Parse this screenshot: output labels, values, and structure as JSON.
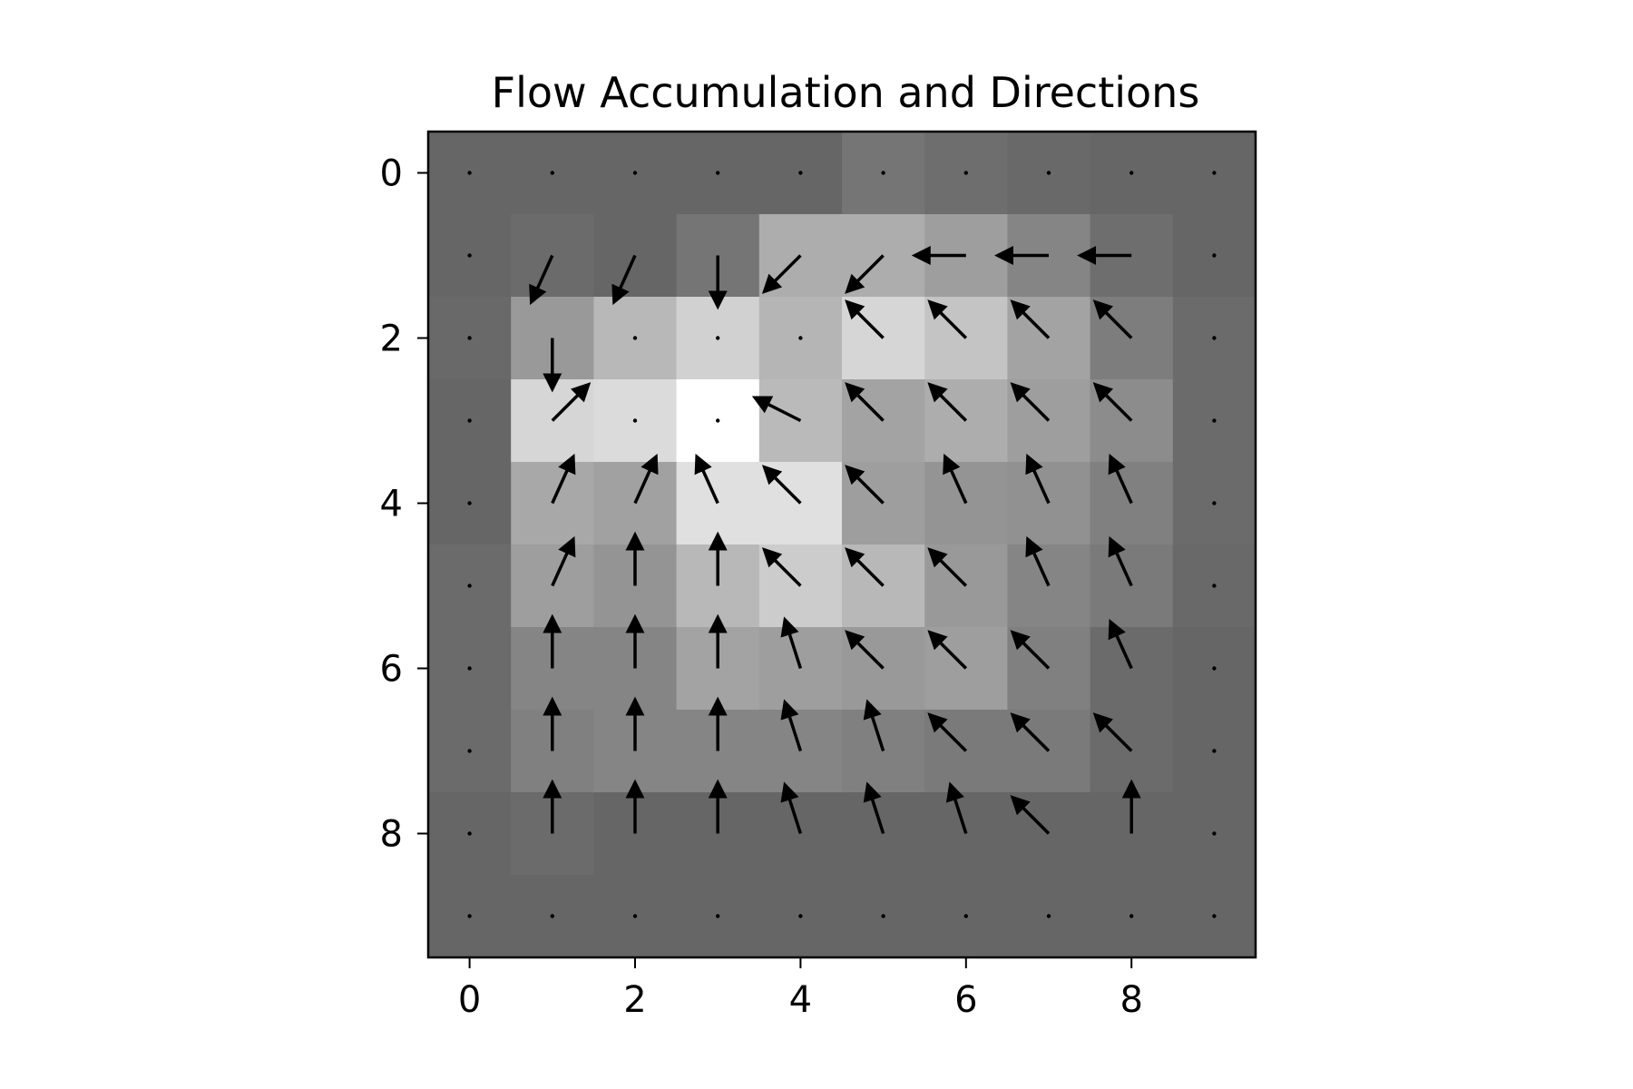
{
  "chart_data": {
    "type": "heatmap",
    "title": "Flow Accumulation and Directions",
    "xlabel": "",
    "ylabel": "",
    "xlim": [
      -0.5,
      9.5
    ],
    "ylim": [
      9.5,
      -0.5
    ],
    "x_ticks": [
      0,
      2,
      4,
      6,
      8
    ],
    "y_ticks": [
      0,
      2,
      4,
      6,
      8
    ],
    "x_tick_labels": [
      "0",
      "2",
      "4",
      "6",
      "8"
    ],
    "y_tick_labels": [
      "0",
      "2",
      "4",
      "6",
      "8"
    ],
    "colormap": "gray",
    "grid": false,
    "legend": "none",
    "grid_size": [
      10,
      10
    ],
    "cell_values": [
      [
        0.4,
        0.4,
        0.4,
        0.4,
        0.4,
        0.46,
        0.43,
        0.41,
        0.4,
        0.4
      ],
      [
        0.4,
        0.42,
        0.4,
        0.46,
        0.68,
        0.68,
        0.62,
        0.52,
        0.43,
        0.4
      ],
      [
        0.41,
        0.6,
        0.72,
        0.82,
        0.71,
        0.84,
        0.77,
        0.64,
        0.49,
        0.42
      ],
      [
        0.4,
        0.84,
        0.86,
        1.0,
        0.73,
        0.64,
        0.68,
        0.62,
        0.55,
        0.42
      ],
      [
        0.4,
        0.66,
        0.63,
        0.88,
        0.88,
        0.62,
        0.58,
        0.57,
        0.5,
        0.42
      ],
      [
        0.42,
        0.62,
        0.58,
        0.72,
        0.8,
        0.72,
        0.6,
        0.52,
        0.48,
        0.41
      ],
      [
        0.42,
        0.52,
        0.52,
        0.64,
        0.62,
        0.6,
        0.62,
        0.5,
        0.42,
        0.4
      ],
      [
        0.42,
        0.5,
        0.52,
        0.52,
        0.52,
        0.5,
        0.48,
        0.48,
        0.42,
        0.4
      ],
      [
        0.4,
        0.42,
        0.4,
        0.4,
        0.4,
        0.4,
        0.4,
        0.4,
        0.4,
        0.4
      ],
      [
        0.4,
        0.4,
        0.4,
        0.4,
        0.4,
        0.4,
        0.4,
        0.4,
        0.4,
        0.4
      ]
    ],
    "flow_directions": [
      [
        [
          0,
          0
        ],
        [
          0,
          0
        ],
        [
          0,
          0
        ],
        [
          0,
          0
        ],
        [
          0,
          0
        ],
        [
          0,
          0
        ],
        [
          0,
          0
        ],
        [
          0,
          0
        ],
        [
          0,
          0
        ],
        [
          0,
          0
        ]
      ],
      [
        [
          0,
          0
        ],
        [
          -0.45,
          -1
        ],
        [
          -0.45,
          -1
        ],
        [
          0,
          -1
        ],
        [
          -0.71,
          -0.71
        ],
        [
          -0.71,
          -0.71
        ],
        [
          -1,
          0
        ],
        [
          -1,
          0
        ],
        [
          -1,
          0
        ],
        [
          0,
          0
        ]
      ],
      [
        [
          0,
          0
        ],
        [
          0,
          -1
        ],
        [
          0,
          0
        ],
        [
          0,
          0
        ],
        [
          0,
          0
        ],
        [
          -0.71,
          0.71
        ],
        [
          -0.71,
          0.71
        ],
        [
          -0.71,
          0.71
        ],
        [
          -0.71,
          0.71
        ],
        [
          0,
          0
        ]
      ],
      [
        [
          0,
          0
        ],
        [
          0.71,
          0.71
        ],
        [
          0,
          0
        ],
        [
          0,
          0
        ],
        [
          -0.89,
          0.45
        ],
        [
          -0.71,
          0.71
        ],
        [
          -0.71,
          0.71
        ],
        [
          -0.71,
          0.71
        ],
        [
          -0.71,
          0.71
        ],
        [
          0,
          0
        ]
      ],
      [
        [
          0,
          0
        ],
        [
          0.45,
          1
        ],
        [
          0.45,
          1
        ],
        [
          -0.45,
          1
        ],
        [
          -0.71,
          0.71
        ],
        [
          -0.71,
          0.71
        ],
        [
          -0.45,
          1
        ],
        [
          -0.45,
          1
        ],
        [
          -0.45,
          1
        ],
        [
          0,
          0
        ]
      ],
      [
        [
          0,
          0
        ],
        [
          0.45,
          1
        ],
        [
          0,
          1
        ],
        [
          0,
          1
        ],
        [
          -0.71,
          0.71
        ],
        [
          -0.71,
          0.71
        ],
        [
          -0.71,
          0.71
        ],
        [
          -0.45,
          1
        ],
        [
          -0.45,
          1
        ],
        [
          0,
          0
        ]
      ],
      [
        [
          0,
          0
        ],
        [
          0,
          1
        ],
        [
          0,
          1
        ],
        [
          0,
          1
        ],
        [
          -0.32,
          1
        ],
        [
          -0.71,
          0.71
        ],
        [
          -0.71,
          0.71
        ],
        [
          -0.71,
          0.71
        ],
        [
          -0.45,
          1
        ],
        [
          0,
          0
        ]
      ],
      [
        [
          0,
          0
        ],
        [
          0,
          1
        ],
        [
          0,
          1
        ],
        [
          0,
          1
        ],
        [
          -0.32,
          1
        ],
        [
          -0.32,
          1
        ],
        [
          -0.71,
          0.71
        ],
        [
          -0.71,
          0.71
        ],
        [
          -0.71,
          0.71
        ],
        [
          0,
          0
        ]
      ],
      [
        [
          0,
          0
        ],
        [
          0,
          1
        ],
        [
          0,
          1
        ],
        [
          0,
          1
        ],
        [
          -0.32,
          1
        ],
        [
          -0.32,
          1
        ],
        [
          -0.32,
          1
        ],
        [
          -0.71,
          0.71
        ],
        [
          0,
          1
        ],
        [
          0,
          0
        ]
      ],
      [
        [
          0,
          0
        ],
        [
          0,
          0
        ],
        [
          0,
          0
        ],
        [
          0,
          0
        ],
        [
          0,
          0
        ],
        [
          0,
          0
        ],
        [
          0,
          0
        ],
        [
          0,
          0
        ],
        [
          0,
          0
        ],
        [
          0,
          0
        ]
      ]
    ]
  },
  "colors": {
    "frame": "#000000",
    "arrow": "#000000",
    "background": "#ffffff"
  }
}
